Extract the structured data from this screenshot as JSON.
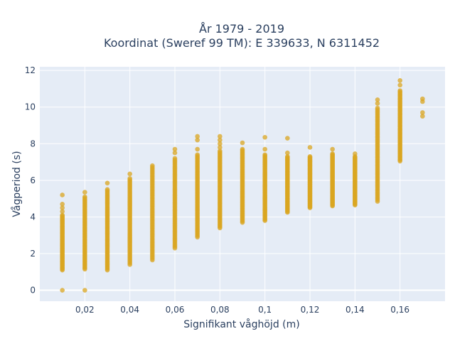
{
  "chart_data": {
    "type": "scatter",
    "title_line1": "År 1979 - 2019",
    "title_line2": "Koordinat (Sweref 99 TM): E 339633, N 6311452",
    "xlabel": "Signifikant våghöjd (m)",
    "ylabel": "Vågperiod (s)",
    "xlim": [
      0.0,
      0.18
    ],
    "ylim": [
      -0.6,
      12.2
    ],
    "x_ticks": [
      {
        "value": 0.02,
        "label": "0,02"
      },
      {
        "value": 0.04,
        "label": "0,04"
      },
      {
        "value": 0.06,
        "label": "0,06"
      },
      {
        "value": 0.08,
        "label": "0,08"
      },
      {
        "value": 0.1,
        "label": "0,1"
      },
      {
        "value": 0.12,
        "label": "0,12"
      },
      {
        "value": 0.14,
        "label": "0,14"
      },
      {
        "value": 0.16,
        "label": "0,16"
      }
    ],
    "y_ticks": [
      {
        "value": 0,
        "label": "0"
      },
      {
        "value": 2,
        "label": "2"
      },
      {
        "value": 4,
        "label": "4"
      },
      {
        "value": 6,
        "label": "6"
      },
      {
        "value": 8,
        "label": "8"
      },
      {
        "value": 10,
        "label": "10"
      },
      {
        "value": 12,
        "label": "12"
      }
    ],
    "grid": true,
    "marker_color": "#DAA520",
    "columns": [
      {
        "x": 0.01,
        "range": [
          1.1,
          4.1
        ],
        "outliers": [
          0.0,
          4.3,
          4.5,
          4.7,
          5.2
        ]
      },
      {
        "x": 0.02,
        "range": [
          1.15,
          5.1
        ],
        "outliers": [
          0.0,
          5.35
        ]
      },
      {
        "x": 0.03,
        "range": [
          1.1,
          5.5
        ],
        "outliers": [
          5.85
        ]
      },
      {
        "x": 0.04,
        "range": [
          1.4,
          6.1
        ],
        "outliers": [
          6.35
        ]
      },
      {
        "x": 0.05,
        "range": [
          1.65,
          6.8
        ],
        "outliers": []
      },
      {
        "x": 0.06,
        "range": [
          2.3,
          7.2
        ],
        "outliers": [
          7.5,
          7.7
        ]
      },
      {
        "x": 0.07,
        "range": [
          2.9,
          7.4
        ],
        "outliers": [
          7.7,
          8.2,
          8.4
        ]
      },
      {
        "x": 0.08,
        "range": [
          3.4,
          7.6
        ],
        "outliers": [
          7.8,
          8.0,
          8.2,
          8.4
        ]
      },
      {
        "x": 0.09,
        "range": [
          3.7,
          7.7
        ],
        "outliers": [
          8.05
        ]
      },
      {
        "x": 0.1,
        "range": [
          3.8,
          7.4
        ],
        "outliers": [
          7.7,
          8.35
        ]
      },
      {
        "x": 0.11,
        "range": [
          4.25,
          7.3
        ],
        "outliers": [
          7.5,
          8.3
        ]
      },
      {
        "x": 0.12,
        "range": [
          4.5,
          7.3
        ],
        "outliers": [
          7.8
        ]
      },
      {
        "x": 0.13,
        "range": [
          4.6,
          7.45
        ],
        "outliers": [
          7.7
        ]
      },
      {
        "x": 0.14,
        "range": [
          4.65,
          7.3
        ],
        "outliers": [
          7.45
        ]
      },
      {
        "x": 0.15,
        "range": [
          4.85,
          9.95
        ],
        "outliers": [
          10.2,
          10.4
        ]
      },
      {
        "x": 0.16,
        "range": [
          7.05,
          10.9
        ],
        "outliers": [
          11.2,
          11.45
        ]
      },
      {
        "x": 0.17,
        "range": [],
        "outliers": [
          9.5,
          9.7,
          10.3,
          10.45
        ]
      }
    ]
  }
}
